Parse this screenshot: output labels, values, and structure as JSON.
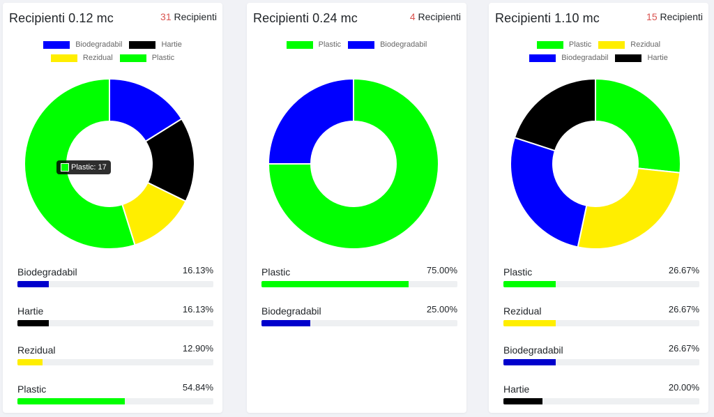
{
  "colors": {
    "Biodegradabil": "#0000ff",
    "Hartie": "#000000",
    "Rezidual": "#ffee00",
    "Plastic": "#00ff00"
  },
  "chart_data": [
    {
      "type": "pie",
      "title": "Recipienti 0.12 mc",
      "count_number": "31",
      "count_label": "Recipienti",
      "legend": [
        "Biodegradabil",
        "Hartie",
        "Rezidual",
        "Plastic"
      ],
      "categories": [
        "Biodegradabil",
        "Hartie",
        "Rezidual",
        "Plastic"
      ],
      "values": [
        5,
        5,
        4,
        17
      ],
      "percents": [
        "16.13%",
        "16.13%",
        "12.90%",
        "54.84%"
      ],
      "tooltip": {
        "text": "Plastic: 17",
        "category": "Plastic"
      }
    },
    {
      "type": "pie",
      "title": "Recipienti 0.24 mc",
      "count_number": "4",
      "count_label": "Recipienti",
      "legend": [
        "Plastic",
        "Biodegradabil"
      ],
      "categories": [
        "Plastic",
        "Biodegradabil"
      ],
      "values": [
        3,
        1
      ],
      "percents": [
        "75.00%",
        "25.00%"
      ]
    },
    {
      "type": "pie",
      "title": "Recipienti 1.10 mc",
      "count_number": "15",
      "count_label": "Recipienti",
      "legend": [
        "Plastic",
        "Rezidual",
        "Biodegradabil",
        "Hartie"
      ],
      "categories": [
        "Plastic",
        "Rezidual",
        "Biodegradabil",
        "Hartie"
      ],
      "values": [
        4,
        4,
        4,
        3
      ],
      "percents": [
        "26.67%",
        "26.67%",
        "26.67%",
        "20.00%"
      ]
    }
  ]
}
